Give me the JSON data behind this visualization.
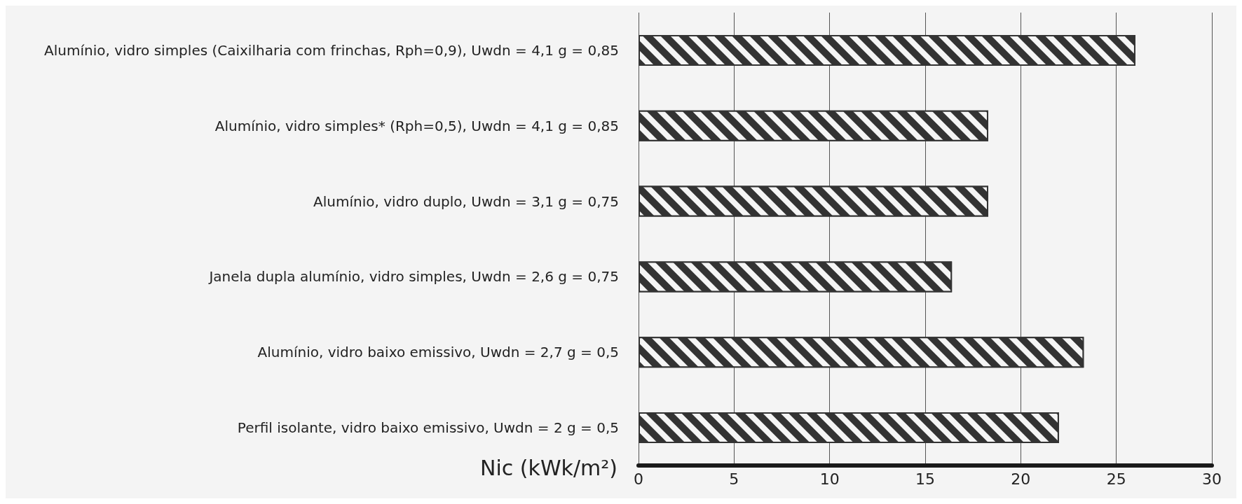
{
  "chart_data": {
    "type": "bar",
    "orientation": "horizontal",
    "xlabel": "Nic (kWk/m²)",
    "categories": [
      "Alumínio, vidro simples (Caixilharia com frinchas, Rph=0,9), Uwdn = 4,1 g = 0,85",
      "Alumínio, vidro simples* (Rph=0,5), Uwdn = 4,1 g = 0,85",
      "Alumínio, vidro duplo, Uwdn = 3,1 g = 0,75",
      "Janela dupla alumínio, vidro simples, Uwdn = 2,6 g = 0,75",
      "Alumínio, vidro baixo emissivo, Uwdn = 2,7 g = 0,5",
      "Perfil isolante, vidro baixo emissivo, Uwdn = 2 g = 0,5"
    ],
    "values": [
      26,
      18.3,
      18.3,
      16.4,
      23.3,
      22
    ],
    "color": "#333333",
    "xlim": [
      0,
      30
    ],
    "xticks": [
      0,
      5,
      10,
      15,
      20,
      25,
      30
    ],
    "grid": "x"
  }
}
